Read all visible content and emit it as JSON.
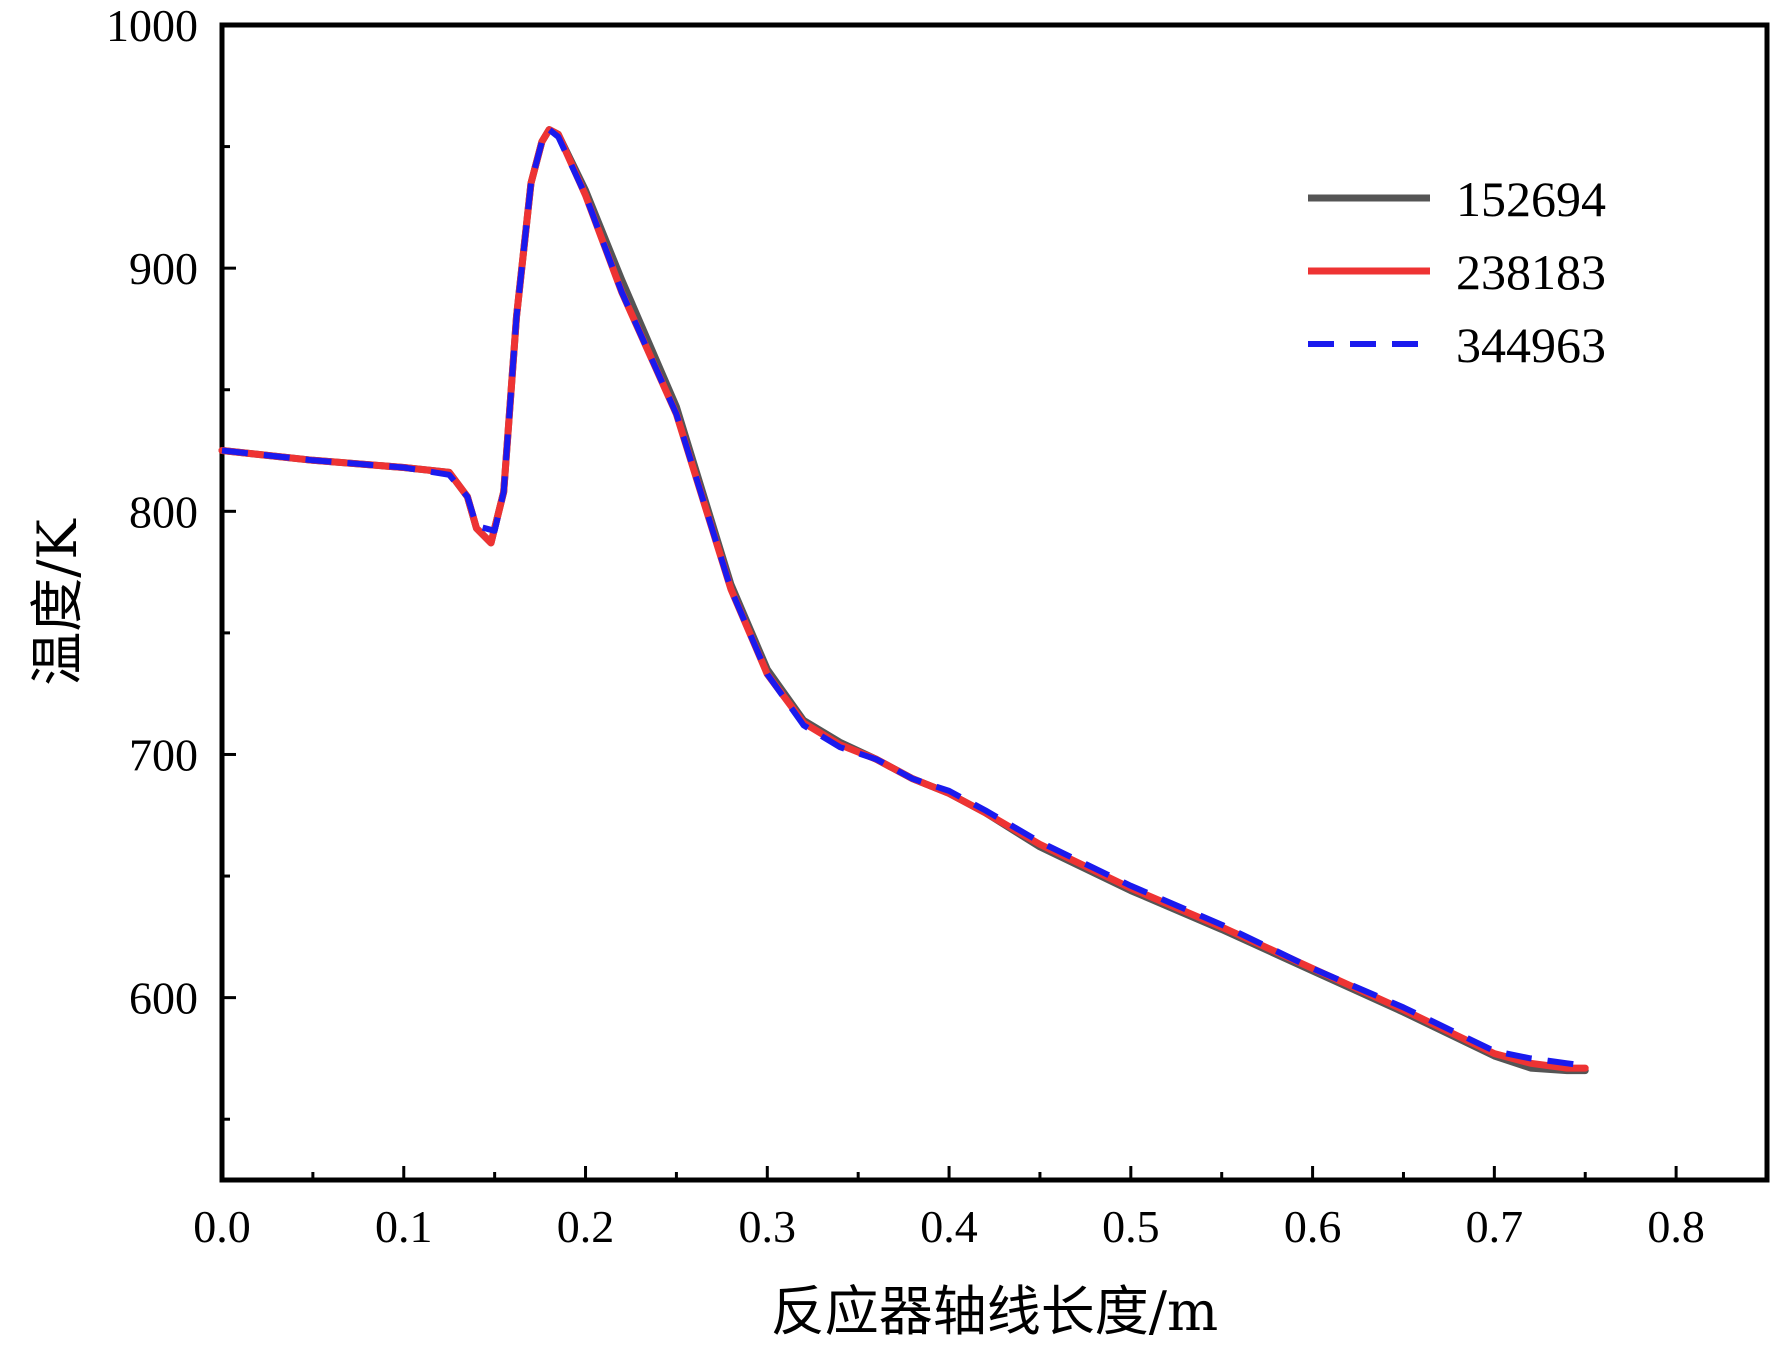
{
  "chart_data": {
    "type": "line",
    "xlabel": "反应器轴线长度/m",
    "ylabel": "温度/K",
    "xlim": [
      0.0,
      0.85
    ],
    "ylim": [
      525,
      1000
    ],
    "xticks": [
      0.0,
      0.1,
      0.2,
      0.3,
      0.4,
      0.5,
      0.6,
      0.7,
      0.8
    ],
    "xtick_labels": [
      "0.0",
      "0.1",
      "0.2",
      "0.3",
      "0.4",
      "0.5",
      "0.6",
      "0.7",
      "0.8"
    ],
    "yticks": [
      600,
      700,
      800,
      900,
      1000
    ],
    "ytick_labels": [
      "600",
      "700",
      "800",
      "900",
      "1000"
    ],
    "grid": false,
    "legend_position": "top-right",
    "series": [
      {
        "name": "152694",
        "color": "#555555",
        "dash": "solid",
        "x": [
          0.0,
          0.05,
          0.1,
          0.125,
          0.135,
          0.14,
          0.148,
          0.155,
          0.162,
          0.17,
          0.176,
          0.18,
          0.185,
          0.2,
          0.22,
          0.25,
          0.28,
          0.3,
          0.32,
          0.34,
          0.36,
          0.38,
          0.4,
          0.42,
          0.45,
          0.5,
          0.55,
          0.6,
          0.65,
          0.7,
          0.72,
          0.74,
          0.75
        ],
        "y": [
          825,
          821,
          818,
          816,
          806,
          793,
          787,
          808,
          880,
          935,
          952,
          957,
          955,
          932,
          895,
          843,
          770,
          735,
          714,
          705,
          698,
          690,
          684,
          676,
          662,
          644,
          628,
          611,
          594,
          576,
          571,
          570,
          570
        ]
      },
      {
        "name": "238183",
        "color": "#ee3333",
        "dash": "solid",
        "x": [
          0.0,
          0.05,
          0.1,
          0.125,
          0.135,
          0.14,
          0.148,
          0.155,
          0.162,
          0.17,
          0.176,
          0.18,
          0.185,
          0.2,
          0.22,
          0.25,
          0.28,
          0.3,
          0.32,
          0.34,
          0.36,
          0.38,
          0.4,
          0.42,
          0.45,
          0.5,
          0.55,
          0.6,
          0.65,
          0.7,
          0.72,
          0.74,
          0.75
        ],
        "y": [
          825,
          821,
          818,
          816,
          806,
          793,
          787,
          808,
          880,
          935,
          952,
          957,
          955,
          930,
          890,
          840,
          768,
          733,
          713,
          704,
          698,
          690,
          684,
          676,
          663,
          645,
          629,
          612,
          595,
          577,
          573,
          571,
          571
        ]
      },
      {
        "name": "344963",
        "color": "#1a1aee",
        "dash": "dashed",
        "x": [
          0.0,
          0.05,
          0.1,
          0.125,
          0.135,
          0.14,
          0.15,
          0.155,
          0.162,
          0.17,
          0.176,
          0.18,
          0.185,
          0.2,
          0.22,
          0.25,
          0.28,
          0.3,
          0.32,
          0.34,
          0.36,
          0.38,
          0.4,
          0.42,
          0.45,
          0.5,
          0.55,
          0.6,
          0.65,
          0.7,
          0.72,
          0.74,
          0.75
        ],
        "y": [
          825,
          821,
          818,
          815,
          806,
          794,
          792,
          808,
          880,
          935,
          952,
          957,
          954,
          930,
          890,
          840,
          768,
          733,
          712,
          703,
          698,
          690,
          685,
          677,
          664,
          646,
          630,
          612,
          596,
          578,
          575,
          573,
          572
        ]
      }
    ]
  }
}
